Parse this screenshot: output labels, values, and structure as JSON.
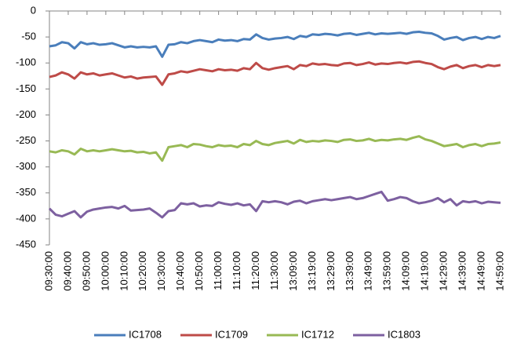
{
  "chart_data": {
    "type": "line",
    "categories": [
      "09:30:00",
      null,
      null,
      "09:40:00",
      null,
      null,
      "09:50:00",
      null,
      null,
      "10:00:00",
      null,
      null,
      "10:10:00",
      null,
      null,
      "10:20:00",
      null,
      null,
      "10:30:00",
      null,
      null,
      "10:40:00",
      null,
      null,
      "10:50:00",
      null,
      null,
      "11:00:00",
      null,
      null,
      "11:10:00",
      null,
      null,
      "11:20:00",
      null,
      null,
      "11:30:00",
      null,
      null,
      "13:09:00",
      null,
      null,
      "13:19:00",
      null,
      null,
      "13:29:00",
      null,
      null,
      "13:39:00",
      null,
      null,
      "13:49:00",
      null,
      null,
      "13:59:00",
      null,
      null,
      "14:09:00",
      null,
      null,
      "14:19:00",
      null,
      null,
      "14:29:00",
      null,
      null,
      "14:39:00",
      null,
      null,
      "14:49:00",
      null,
      null,
      "14:59:00"
    ],
    "series": [
      {
        "name": "IC1708",
        "color": "#4a7ebb",
        "values": [
          -68,
          -66,
          -60,
          -62,
          -72,
          -60,
          -64,
          -62,
          -65,
          -64,
          -62,
          -66,
          -70,
          -68,
          -70,
          -69,
          -70,
          -68,
          -88,
          -65,
          -64,
          -60,
          -62,
          -58,
          -56,
          -58,
          -60,
          -55,
          -57,
          -56,
          -58,
          -54,
          -55,
          -45,
          -52,
          -55,
          -53,
          -52,
          -50,
          -54,
          -48,
          -50,
          -45,
          -46,
          -44,
          -45,
          -47,
          -44,
          -43,
          -46,
          -44,
          -42,
          -45,
          -43,
          -44,
          -43,
          -42,
          -44,
          -41,
          -40,
          -42,
          -43,
          -48,
          -55,
          -52,
          -50,
          -56,
          -52,
          -50,
          -54,
          -50,
          -52,
          -48
        ]
      },
      {
        "name": "IC1709",
        "color": "#be4b48",
        "values": [
          -127,
          -124,
          -118,
          -122,
          -130,
          -118,
          -122,
          -120,
          -124,
          -122,
          -120,
          -124,
          -128,
          -126,
          -130,
          -128,
          -127,
          -126,
          -142,
          -122,
          -120,
          -116,
          -118,
          -115,
          -112,
          -114,
          -116,
          -112,
          -114,
          -113,
          -115,
          -110,
          -112,
          -100,
          -110,
          -113,
          -110,
          -108,
          -106,
          -112,
          -104,
          -106,
          -101,
          -103,
          -102,
          -104,
          -105,
          -101,
          -100,
          -104,
          -102,
          -99,
          -103,
          -101,
          -102,
          -100,
          -99,
          -101,
          -98,
          -97,
          -100,
          -102,
          -108,
          -112,
          -107,
          -104,
          -110,
          -106,
          -104,
          -108,
          -104,
          -106,
          -104
        ]
      },
      {
        "name": "IC1712",
        "color": "#98b954",
        "values": [
          -270,
          -272,
          -268,
          -270,
          -276,
          -265,
          -270,
          -268,
          -270,
          -268,
          -266,
          -268,
          -270,
          -269,
          -272,
          -271,
          -274,
          -272,
          -288,
          -262,
          -260,
          -258,
          -262,
          -256,
          -257,
          -260,
          -262,
          -258,
          -260,
          -259,
          -262,
          -256,
          -258,
          -250,
          -256,
          -258,
          -254,
          -252,
          -250,
          -255,
          -248,
          -252,
          -250,
          -251,
          -249,
          -250,
          -252,
          -248,
          -247,
          -250,
          -249,
          -246,
          -250,
          -248,
          -249,
          -247,
          -246,
          -248,
          -244,
          -241,
          -247,
          -250,
          -255,
          -260,
          -258,
          -256,
          -262,
          -258,
          -256,
          -260,
          -256,
          -255,
          -253
        ]
      },
      {
        "name": "IC1803",
        "color": "#7d60a0",
        "values": [
          -380,
          -392,
          -395,
          -390,
          -385,
          -397,
          -386,
          -382,
          -380,
          -378,
          -377,
          -380,
          -375,
          -384,
          -383,
          -382,
          -380,
          -388,
          -397,
          -385,
          -383,
          -370,
          -372,
          -370,
          -376,
          -374,
          -375,
          -368,
          -371,
          -373,
          -370,
          -374,
          -372,
          -385,
          -366,
          -368,
          -366,
          -368,
          -372,
          -367,
          -365,
          -370,
          -366,
          -364,
          -362,
          -364,
          -362,
          -360,
          -358,
          -362,
          -360,
          -356,
          -352,
          -348,
          -365,
          -362,
          -358,
          -360,
          -366,
          -370,
          -368,
          -365,
          -360,
          -368,
          -362,
          -374,
          -366,
          -368,
          -366,
          -370,
          -367,
          -368,
          -369
        ]
      }
    ],
    "ylim": [
      -450,
      0
    ],
    "yticks": [
      0,
      -50,
      -100,
      -150,
      -200,
      -250,
      -300,
      -350,
      -400,
      -450
    ],
    "grid": false,
    "legend": "bottom"
  }
}
